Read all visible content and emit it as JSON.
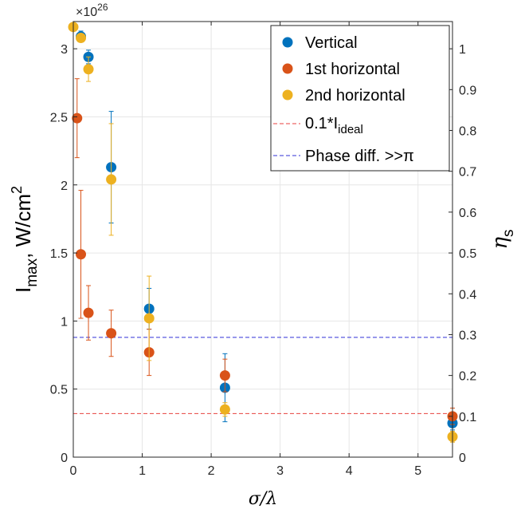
{
  "chart_data": {
    "type": "scatter",
    "title": "",
    "xlabel": "σ/λ",
    "ylabel": "I_max, W/cm^2",
    "ylabel_main": "I",
    "ylabel_sub": "max",
    "ylabel_rest": ", W/cm",
    "ylabel_sup": "2",
    "y2label": "η",
    "y2label_sub": "s",
    "exponent_prefix": "×10",
    "exponent_power": "26",
    "xlim": [
      0,
      5.5
    ],
    "ylim": [
      0,
      3.2
    ],
    "y2lim": [
      0,
      1.0667
    ],
    "xticks": [
      0,
      1,
      2,
      3,
      4,
      5
    ],
    "yticks": [
      0,
      0.5,
      1,
      1.5,
      2,
      2.5,
      3
    ],
    "yticklabels": [
      "0",
      "0.5",
      "1",
      "1.5",
      "2",
      "2.5",
      "3"
    ],
    "y2ticks": [
      0,
      0.1,
      0.2,
      0.3,
      0.4,
      0.5,
      0.6,
      0.7,
      0.8,
      0.9,
      1
    ],
    "y2ticklabels": [
      "0",
      "0.1",
      "0.2",
      "0.3",
      "0.4",
      "0.5",
      "0.6",
      "0.7",
      "0.8",
      "0.9",
      "1"
    ],
    "grid": true,
    "legend_position": "top-right",
    "series": [
      {
        "name": "Vertical",
        "color": "#0072BD",
        "points": [
          {
            "x": 0.11,
            "y": 3.09,
            "err": 0.04
          },
          {
            "x": 0.22,
            "y": 2.94,
            "err": 0.05
          },
          {
            "x": 0.55,
            "y": 2.13,
            "err": 0.41
          },
          {
            "x": 1.1,
            "y": 1.09,
            "err": 0.15
          },
          {
            "x": 2.2,
            "y": 0.51,
            "err": 0.25
          },
          {
            "x": 5.5,
            "y": 0.25,
            "err": 0.05
          }
        ]
      },
      {
        "name": "1st horizontal",
        "color": "#D95319",
        "points": [
          {
            "x": 0.055,
            "y": 2.49,
            "err": 0.29
          },
          {
            "x": 0.11,
            "y": 1.49,
            "err": 0.47
          },
          {
            "x": 0.22,
            "y": 1.06,
            "err": 0.2
          },
          {
            "x": 0.55,
            "y": 0.91,
            "err": 0.17
          },
          {
            "x": 1.1,
            "y": 0.77,
            "err": 0.17
          },
          {
            "x": 2.2,
            "y": 0.6,
            "err": 0.12
          },
          {
            "x": 5.5,
            "y": 0.3,
            "err": 0.06
          }
        ]
      },
      {
        "name": "2nd horizontal",
        "color": "#EDB120",
        "points": [
          {
            "x": 0.0,
            "y": 3.16,
            "err": 0.02
          },
          {
            "x": 0.11,
            "y": 3.08,
            "err": 0.03
          },
          {
            "x": 0.22,
            "y": 2.85,
            "err": 0.09
          },
          {
            "x": 0.55,
            "y": 2.04,
            "err": 0.41
          },
          {
            "x": 1.1,
            "y": 1.02,
            "err": 0.31
          },
          {
            "x": 2.2,
            "y": 0.35,
            "err": 0.05
          },
          {
            "x": 5.5,
            "y": 0.15,
            "err": 0.04
          }
        ]
      }
    ],
    "hlines": [
      {
        "name": "0.1*I_ideal",
        "legend_main": "0.1*I",
        "legend_sub": "ideal",
        "y": 0.32,
        "color": "#E8423F"
      },
      {
        "name": "Phase diff. >>π",
        "legend_main": "Phase diff. >>π",
        "legend_sub": "",
        "y": 0.88,
        "color": "#3131D6"
      }
    ]
  }
}
